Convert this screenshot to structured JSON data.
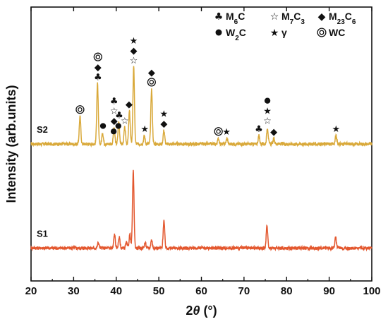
{
  "chart_data": {
    "type": "line",
    "xlabel": "2θ (°)",
    "ylabel": "Intensity (arb.units)",
    "xlim": [
      20,
      100
    ],
    "xticks": [
      20,
      30,
      40,
      50,
      60,
      70,
      80,
      90,
      100
    ],
    "y_tick_labels": false,
    "grid": false,
    "legend_position": "top-right",
    "legend": [
      {
        "symbol": "club",
        "label": "M6C"
      },
      {
        "symbol": "star-open",
        "label": "M7C3"
      },
      {
        "symbol": "diamond",
        "label": "M23C6"
      },
      {
        "symbol": "circle",
        "label": "W2C"
      },
      {
        "symbol": "star",
        "label": "γ"
      },
      {
        "symbol": "double-circle",
        "label": "WC"
      }
    ],
    "series": [
      {
        "name": "S2",
        "color": "#d9a93a",
        "baseline": 0.5,
        "noise": 0.006,
        "peaks": [
          {
            "x": 31.5,
            "h": 0.1
          },
          {
            "x": 35.6,
            "h": 0.22
          },
          {
            "x": 36.8,
            "h": 0.04
          },
          {
            "x": 39.5,
            "h": 0.06
          },
          {
            "x": 40.6,
            "h": 0.08
          },
          {
            "x": 42.0,
            "h": 0.06
          },
          {
            "x": 43.1,
            "h": 0.12
          },
          {
            "x": 44.1,
            "h": 0.28
          },
          {
            "x": 46.6,
            "h": 0.03
          },
          {
            "x": 48.3,
            "h": 0.2
          },
          {
            "x": 51.2,
            "h": 0.05
          },
          {
            "x": 64.0,
            "h": 0.02
          },
          {
            "x": 66.0,
            "h": 0.02
          },
          {
            "x": 73.5,
            "h": 0.03
          },
          {
            "x": 75.5,
            "h": 0.06
          },
          {
            "x": 77.0,
            "h": 0.02
          },
          {
            "x": 91.6,
            "h": 0.03
          }
        ]
      },
      {
        "name": "S1",
        "color": "#e3572e",
        "baseline": 0.12,
        "noise": 0.006,
        "peaks": [
          {
            "x": 35.8,
            "h": 0.02
          },
          {
            "x": 39.6,
            "h": 0.05
          },
          {
            "x": 40.7,
            "h": 0.04
          },
          {
            "x": 42.4,
            "h": 0.02
          },
          {
            "x": 43.2,
            "h": 0.05
          },
          {
            "x": 44.0,
            "h": 0.28
          },
          {
            "x": 46.8,
            "h": 0.02
          },
          {
            "x": 48.3,
            "h": 0.03
          },
          {
            "x": 51.2,
            "h": 0.1
          },
          {
            "x": 75.4,
            "h": 0.08
          },
          {
            "x": 91.5,
            "h": 0.04
          }
        ]
      }
    ],
    "annotations": [
      {
        "symbol": "double-circle",
        "x": 31.5,
        "above": 0.1
      },
      {
        "symbol": "club",
        "x": 35.7,
        "above": 0.22
      },
      {
        "symbol": "diamond",
        "x": 35.7,
        "above": 0.22
      },
      {
        "symbol": "double-circle",
        "x": 35.7,
        "above": 0.22
      },
      {
        "symbol": "circle",
        "x": 36.9,
        "above": 0.04
      },
      {
        "symbol": "diamond",
        "x": 39.5,
        "above": 0.06
      },
      {
        "symbol": "star-open",
        "x": 39.5,
        "above": 0.06
      },
      {
        "symbol": "club",
        "x": 39.5,
        "above": 0.06
      },
      {
        "symbol": "circle",
        "x": 39.4,
        "above": 0.02
      },
      {
        "symbol": "circle",
        "x": 40.5,
        "above": 0.04
      },
      {
        "symbol": "club",
        "x": 40.7,
        "above": 0.08
      },
      {
        "symbol": "star-open",
        "x": 42.0,
        "above": 0.06
      },
      {
        "symbol": "diamond",
        "x": 43.0,
        "above": 0.12
      },
      {
        "symbol": "star-open",
        "x": 44.1,
        "above": 0.28
      },
      {
        "symbol": "diamond",
        "x": 44.1,
        "above": 0.28
      },
      {
        "symbol": "star",
        "x": 44.1,
        "above": 0.28
      },
      {
        "symbol": "star",
        "x": 46.7,
        "above": 0.03
      },
      {
        "symbol": "double-circle",
        "x": 48.3,
        "above": 0.2
      },
      {
        "symbol": "diamond",
        "x": 48.3,
        "above": 0.2
      },
      {
        "symbol": "diamond",
        "x": 51.2,
        "above": 0.05
      },
      {
        "symbol": "star",
        "x": 51.2,
        "above": 0.05
      },
      {
        "symbol": "double-circle",
        "x": 64.0,
        "above": 0.02
      },
      {
        "symbol": "star",
        "x": 65.9,
        "above": 0.02
      },
      {
        "symbol": "club",
        "x": 73.5,
        "above": 0.03
      },
      {
        "symbol": "star-open",
        "x": 75.5,
        "above": 0.06
      },
      {
        "symbol": "star",
        "x": 75.5,
        "above": 0.06
      },
      {
        "symbol": "circle",
        "x": 75.5,
        "above": 0.06
      },
      {
        "symbol": "diamond",
        "x": 77.0,
        "above": 0.02
      },
      {
        "symbol": "star",
        "x": 91.6,
        "above": 0.03
      }
    ]
  }
}
